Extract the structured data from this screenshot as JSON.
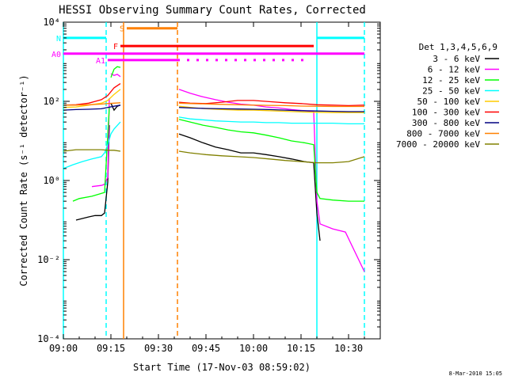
{
  "chart_data": {
    "type": "line",
    "title": "HESSI Observing Summary Count Rates, Corrected",
    "xlabel": "Start Time (17-Nov-03 08:59:02)",
    "ylabel": "Corrected Count Rate (s⁻¹ detector⁻¹)",
    "y_scale": "log",
    "xlim": [
      "09:00",
      "10:40"
    ],
    "ylim": [
      0.0001,
      10000
    ],
    "x_ticks": [
      "09:00",
      "09:15",
      "09:30",
      "09:45",
      "10:00",
      "10:15",
      "10:30"
    ],
    "y_ticks": [
      "10⁻⁴",
      "10⁻²",
      "10⁰",
      "10²",
      "10⁴"
    ],
    "legend_title": "Det 1,3,4,5,6,9",
    "legend_position": "right",
    "timestamp": "8-Mar-2010 15:05",
    "series": [
      {
        "name": "3 - 6 keV",
        "color": "#000000",
        "segments": [
          [
            [
              "09:04",
              0.1
            ],
            [
              "09:08",
              0.12
            ],
            [
              "09:10",
              0.13
            ],
            [
              "09:12",
              0.13
            ],
            [
              "09:13",
              0.15
            ],
            [
              "09:14",
              0.9
            ],
            [
              "09:14.5",
              25
            ]
          ],
          [
            [
              "09:15",
              90
            ],
            [
              "09:16",
              60
            ],
            [
              "09:17",
              75
            ],
            [
              "09:18",
              80
            ]
          ],
          [
            [
              "09:36.5",
              15
            ],
            [
              "09:40",
              12
            ],
            [
              "09:44",
              9
            ],
            [
              "09:48",
              7
            ],
            [
              "09:52",
              6
            ],
            [
              "09:56",
              5
            ],
            [
              "10:00",
              5
            ],
            [
              "10:04",
              4.5
            ],
            [
              "10:08",
              4
            ],
            [
              "10:12",
              3.5
            ],
            [
              "10:16",
              3
            ],
            [
              "10:19",
              2.8
            ],
            [
              "10:20",
              0.15
            ],
            [
              "10:21",
              0.03
            ]
          ]
        ]
      },
      {
        "name": "6 - 12 keV",
        "color": "#ff00ff",
        "segments": [
          [
            [
              "09:09",
              0.7
            ],
            [
              "09:12",
              0.75
            ],
            [
              "09:13",
              0.8
            ],
            [
              "09:14",
              1.2
            ],
            [
              "09:14.5",
              120
            ]
          ],
          [
            [
              "09:15",
              500
            ],
            [
              "09:16",
              450
            ],
            [
              "09:17",
              480
            ],
            [
              "09:18",
              420
            ]
          ],
          [
            [
              "09:36.5",
              200
            ],
            [
              "09:40",
              160
            ],
            [
              "09:44",
              130
            ],
            [
              "09:48",
              110
            ],
            [
              "09:52",
              95
            ],
            [
              "09:56",
              85
            ],
            [
              "10:00",
              80
            ],
            [
              "10:04",
              72
            ],
            [
              "10:08",
              68
            ],
            [
              "10:12",
              62
            ],
            [
              "10:16",
              58
            ],
            [
              "10:19",
              55
            ],
            [
              "10:20",
              0.3
            ],
            [
              "10:21",
              0.08
            ],
            [
              "10:25",
              0.06
            ],
            [
              "10:29",
              0.05
            ],
            [
              "10:35",
              0.005
            ]
          ]
        ]
      },
      {
        "name": "12 - 25 keV",
        "color": "#00ff00",
        "segments": [
          [
            [
              "09:03",
              0.3
            ],
            [
              "09:05",
              0.35
            ],
            [
              "09:09",
              0.4
            ],
            [
              "09:13",
              0.5
            ],
            [
              "09:14.5",
              70
            ]
          ],
          [
            [
              "09:15",
              400
            ],
            [
              "09:16",
              650
            ],
            [
              "09:17",
              750
            ],
            [
              "09:18",
              720
            ]
          ],
          [
            [
              "09:36.5",
              35
            ],
            [
              "09:40",
              30
            ],
            [
              "09:44",
              25
            ],
            [
              "09:48",
              22
            ],
            [
              "09:52",
              19
            ],
            [
              "09:56",
              17
            ],
            [
              "10:00",
              16
            ],
            [
              "10:04",
              14
            ],
            [
              "10:08",
              12
            ],
            [
              "10:12",
              10
            ],
            [
              "10:16",
              9
            ],
            [
              "10:19",
              8
            ],
            [
              "10:20",
              0.5
            ],
            [
              "10:21",
              0.35
            ],
            [
              "10:25",
              0.32
            ],
            [
              "10:30",
              0.3
            ],
            [
              "10:35",
              0.3
            ]
          ]
        ]
      },
      {
        "name": "25 - 50 keV",
        "color": "#00ffff",
        "segments": [
          [
            [
              "09:00",
              2
            ],
            [
              "09:03",
              2.5
            ],
            [
              "09:06",
              3
            ],
            [
              "09:09",
              3.5
            ],
            [
              "09:12",
              4
            ],
            [
              "09:13",
              5
            ],
            [
              "09:14",
              8
            ],
            [
              "09:15",
              15
            ],
            [
              "09:16",
              20
            ],
            [
              "09:18",
              30
            ]
          ],
          [
            [
              "09:36.5",
              40
            ],
            [
              "09:40",
              36
            ],
            [
              "09:44",
              34
            ],
            [
              "09:48",
              32
            ],
            [
              "09:52",
              31
            ],
            [
              "09:56",
              30
            ],
            [
              "10:00",
              30
            ],
            [
              "10:04",
              29
            ],
            [
              "10:08",
              29
            ],
            [
              "10:12",
              28
            ],
            [
              "10:16",
              28
            ],
            [
              "10:20",
              28
            ],
            [
              "10:25",
              28
            ],
            [
              "10:30",
              27
            ],
            [
              "10:35",
              27
            ]
          ]
        ]
      },
      {
        "name": "50 - 100 keV",
        "color": "#ffcc00",
        "segments": [
          [
            [
              "09:00",
              70
            ],
            [
              "09:04",
              72
            ],
            [
              "09:08",
              80
            ],
            [
              "09:12",
              90
            ],
            [
              "09:14",
              105
            ],
            [
              "09:16",
              150
            ],
            [
              "09:18",
              200
            ]
          ],
          [
            [
              "09:36.5",
              75
            ],
            [
              "09:40",
              70
            ],
            [
              "09:45",
              65
            ],
            [
              "09:50",
              62
            ],
            [
              "09:55",
              60
            ],
            [
              "10:00",
              60
            ],
            [
              "10:05",
              58
            ],
            [
              "10:10",
              56
            ],
            [
              "10:15",
              54
            ],
            [
              "10:20",
              53
            ],
            [
              "10:25",
              52
            ],
            [
              "10:30",
              52
            ],
            [
              "10:35",
              52
            ]
          ]
        ]
      },
      {
        "name": "100 - 300 keV",
        "color": "#ff0000",
        "segments": [
          [
            [
              "09:00",
              80
            ],
            [
              "09:04",
              82
            ],
            [
              "09:08",
              90
            ],
            [
              "09:12",
              110
            ],
            [
              "09:14",
              140
            ],
            [
              "09:16",
              220
            ],
            [
              "09:18",
              280
            ]
          ],
          [
            [
              "09:36.5",
              95
            ],
            [
              "09:40",
              90
            ],
            [
              "09:45",
              88
            ],
            [
              "09:50",
              95
            ],
            [
              "09:55",
              105
            ],
            [
              "10:00",
              105
            ],
            [
              "10:05",
              98
            ],
            [
              "10:10",
              92
            ],
            [
              "10:15",
              88
            ],
            [
              "10:20",
              82
            ],
            [
              "10:25",
              80
            ],
            [
              "10:30",
              78
            ],
            [
              "10:35",
              80
            ]
          ]
        ]
      },
      {
        "name": "300 - 800 keV",
        "color": "#000080",
        "segments": [
          [
            [
              "09:00",
              60
            ],
            [
              "09:04",
              62
            ],
            [
              "09:08",
              63
            ],
            [
              "09:12",
              65
            ],
            [
              "09:14",
              70
            ],
            [
              "09:16",
              75
            ],
            [
              "09:18",
              80
            ]
          ],
          [
            [
              "09:36.5",
              70
            ],
            [
              "09:40",
              68
            ],
            [
              "09:45",
              66
            ],
            [
              "09:50",
              65
            ],
            [
              "09:55",
              64
            ],
            [
              "10:00",
              63
            ],
            [
              "10:05",
              62
            ],
            [
              "10:10",
              60
            ],
            [
              "10:15",
              58
            ],
            [
              "10:20",
              57
            ],
            [
              "10:25",
              56
            ],
            [
              "10:30",
              55
            ],
            [
              "10:35",
              55
            ]
          ]
        ]
      },
      {
        "name": "800 - 7000 keV",
        "color": "#ff8000",
        "segments": [
          [
            [
              "09:00",
              80
            ],
            [
              "09:04",
              80
            ],
            [
              "09:08",
              82
            ],
            [
              "09:12",
              85
            ],
            [
              "09:14",
              88
            ],
            [
              "09:16",
              90
            ],
            [
              "09:18",
              92
            ]
          ],
          [
            [
              "09:36.5",
              90
            ],
            [
              "09:40",
              88
            ],
            [
              "09:45",
              86
            ],
            [
              "09:50",
              84
            ],
            [
              "09:55",
              82
            ],
            [
              "10:00",
              80
            ],
            [
              "10:05",
              79
            ],
            [
              "10:10",
              78
            ],
            [
              "10:15",
              76
            ],
            [
              "10:20",
              75
            ],
            [
              "10:25",
              74
            ],
            [
              "10:30",
              74
            ],
            [
              "10:35",
              74
            ]
          ]
        ]
      },
      {
        "name": "7000 - 20000 keV",
        "color": "#808000",
        "segments": [
          [
            [
              "09:00",
              5.5
            ],
            [
              "09:04",
              6
            ],
            [
              "09:08",
              6
            ],
            [
              "09:12",
              6
            ],
            [
              "09:14",
              5.8
            ],
            [
              "09:16",
              5.8
            ],
            [
              "09:18",
              5.5
            ]
          ],
          [
            [
              "09:36.5",
              5.5
            ],
            [
              "09:40",
              5
            ],
            [
              "09:45",
              4.5
            ],
            [
              "09:50",
              4.2
            ],
            [
              "09:55",
              4
            ],
            [
              "10:00",
              3.8
            ],
            [
              "10:05",
              3.5
            ],
            [
              "10:10",
              3.2
            ],
            [
              "10:15",
              3
            ],
            [
              "10:20",
              2.8
            ],
            [
              "10:25",
              2.8
            ],
            [
              "10:30",
              3
            ],
            [
              "10:35",
              4
            ]
          ]
        ]
      }
    ],
    "vlines": [
      {
        "x": "09:00",
        "color": "#00ffff",
        "style": "solid"
      },
      {
        "x": "09:13.5",
        "color": "#00ffff",
        "style": "dashed"
      },
      {
        "x": "09:19",
        "color": "#ff8000",
        "style": "solid"
      },
      {
        "x": "09:36",
        "color": "#ff8000",
        "style": "dashed"
      },
      {
        "x": "10:20",
        "color": "#00ffff",
        "style": "solid"
      },
      {
        "x": "10:35",
        "color": "#00ffff",
        "style": "dashed"
      }
    ],
    "flag_bars": [
      {
        "label": "N",
        "color": "#00ffff",
        "y": 4000,
        "spans": [
          [
            "09:00",
            "09:13.5"
          ],
          [
            "10:20",
            "10:35"
          ]
        ]
      },
      {
        "label": "S",
        "color": "#ff8000",
        "y": 7000,
        "spans": [
          [
            "09:20",
            "09:36"
          ]
        ]
      },
      {
        "label": "F",
        "color": "#ff0000",
        "y": 2500,
        "spans": [
          [
            "09:18",
            "10:19"
          ]
        ]
      },
      {
        "label": "A0",
        "color": "#ff00ff",
        "y": 1600,
        "spans": [
          [
            "09:00",
            "10:35"
          ]
        ]
      },
      {
        "label": "A1",
        "color": "#ff00ff",
        "y": 1100,
        "spans": [
          [
            "09:14",
            "09:36"
          ],
          [
            "09:36",
            "10:17"
          ]
        ]
      }
    ]
  }
}
